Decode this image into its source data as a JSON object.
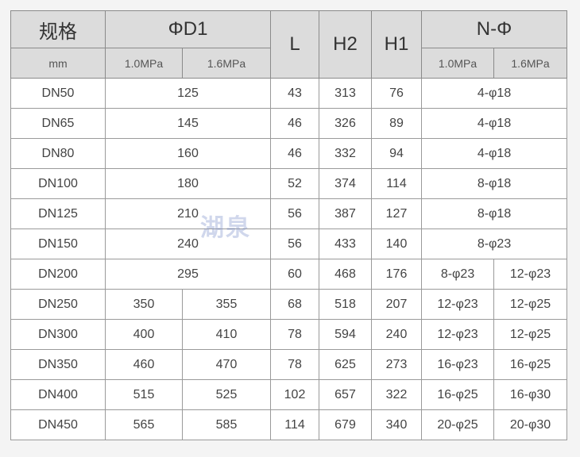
{
  "header": {
    "spec": "规格",
    "d1": "ΦD1",
    "l": "L",
    "h2": "H2",
    "h1": "H1",
    "nphi": "N-Φ",
    "unit": "mm",
    "p10": "1.0MPa",
    "p16": "1.6MPa"
  },
  "watermark": "湖泉",
  "rows": [
    {
      "dn": "DN50",
      "d1": "125",
      "l": "43",
      "h2": "313",
      "h1": "76",
      "n": "4-φ18"
    },
    {
      "dn": "DN65",
      "d1": "145",
      "l": "46",
      "h2": "326",
      "h1": "89",
      "n": "4-φ18"
    },
    {
      "dn": "DN80",
      "d1": "160",
      "l": "46",
      "h2": "332",
      "h1": "94",
      "n": "4-φ18"
    },
    {
      "dn": "DN100",
      "d1": "180",
      "l": "52",
      "h2": "374",
      "h1": "114",
      "n": "8-φ18"
    },
    {
      "dn": "DN125",
      "d1": "210",
      "l": "56",
      "h2": "387",
      "h1": "127",
      "n": "8-φ18"
    },
    {
      "dn": "DN150",
      "d1": "240",
      "l": "56",
      "h2": "433",
      "h1": "140",
      "n": "8-φ23"
    },
    {
      "dn": "DN200",
      "d1": "295",
      "l": "60",
      "h2": "468",
      "h1": "176",
      "n10": "8-φ23",
      "n16": "12-φ23"
    },
    {
      "dn": "DN250",
      "d10": "350",
      "d16": "355",
      "l": "68",
      "h2": "518",
      "h1": "207",
      "n10": "12-φ23",
      "n16": "12-φ25"
    },
    {
      "dn": "DN300",
      "d10": "400",
      "d16": "410",
      "l": "78",
      "h2": "594",
      "h1": "240",
      "n10": "12-φ23",
      "n16": "12-φ25"
    },
    {
      "dn": "DN350",
      "d10": "460",
      "d16": "470",
      "l": "78",
      "h2": "625",
      "h1": "273",
      "n10": "16-φ23",
      "n16": "16-φ25"
    },
    {
      "dn": "DN400",
      "d10": "515",
      "d16": "525",
      "l": "102",
      "h2": "657",
      "h1": "322",
      "n10": "16-φ25",
      "n16": "16-φ30"
    },
    {
      "dn": "DN450",
      "d10": "565",
      "d16": "585",
      "l": "114",
      "h2": "679",
      "h1": "340",
      "n10": "20-φ25",
      "n16": "20-φ30"
    }
  ]
}
